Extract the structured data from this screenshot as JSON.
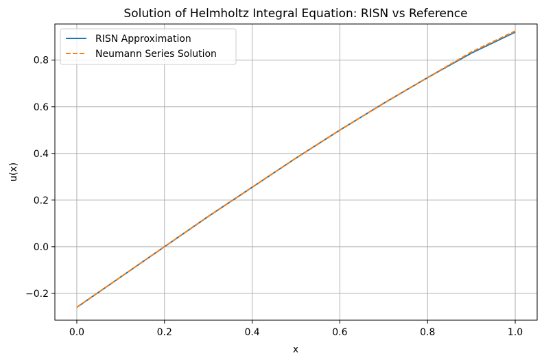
{
  "chart_data": {
    "type": "line",
    "title": "Solution of Helmholtz Integral Equation: RISN vs Reference",
    "xlabel": "x",
    "ylabel": "u(x)",
    "xlim": [
      -0.05,
      1.05
    ],
    "ylim": [
      -0.315,
      0.955
    ],
    "xticks": [
      0.0,
      0.2,
      0.4,
      0.6,
      0.8,
      1.0
    ],
    "xtick_labels": [
      "0.0",
      "0.2",
      "0.4",
      "0.6",
      "0.8",
      "1.0"
    ],
    "yticks": [
      -0.2,
      0.0,
      0.2,
      0.4,
      0.6,
      0.8
    ],
    "ytick_labels": [
      "−0.2",
      "0.0",
      "0.2",
      "0.4",
      "0.6",
      "0.8"
    ],
    "grid": true,
    "legend_position": "upper-left",
    "series": [
      {
        "name": "RISN Approximation",
        "color": "#1f77b4",
        "style": "solid",
        "x": [
          0.0,
          0.1,
          0.2,
          0.3,
          0.4,
          0.5,
          0.6,
          0.7,
          0.8,
          0.9,
          1.0
        ],
        "y": [
          -0.26,
          -0.13,
          0.0,
          0.13,
          0.255,
          0.38,
          0.5,
          0.615,
          0.725,
          0.83,
          0.92
        ]
      },
      {
        "name": "Neumann Series Solution",
        "color": "#ff7f0e",
        "style": "dashed",
        "x": [
          0.0,
          0.1,
          0.2,
          0.3,
          0.4,
          0.5,
          0.6,
          0.7,
          0.8,
          0.9,
          1.0
        ],
        "y": [
          -0.26,
          -0.13,
          0.0,
          0.13,
          0.255,
          0.38,
          0.5,
          0.615,
          0.725,
          0.835,
          0.925
        ]
      }
    ]
  }
}
